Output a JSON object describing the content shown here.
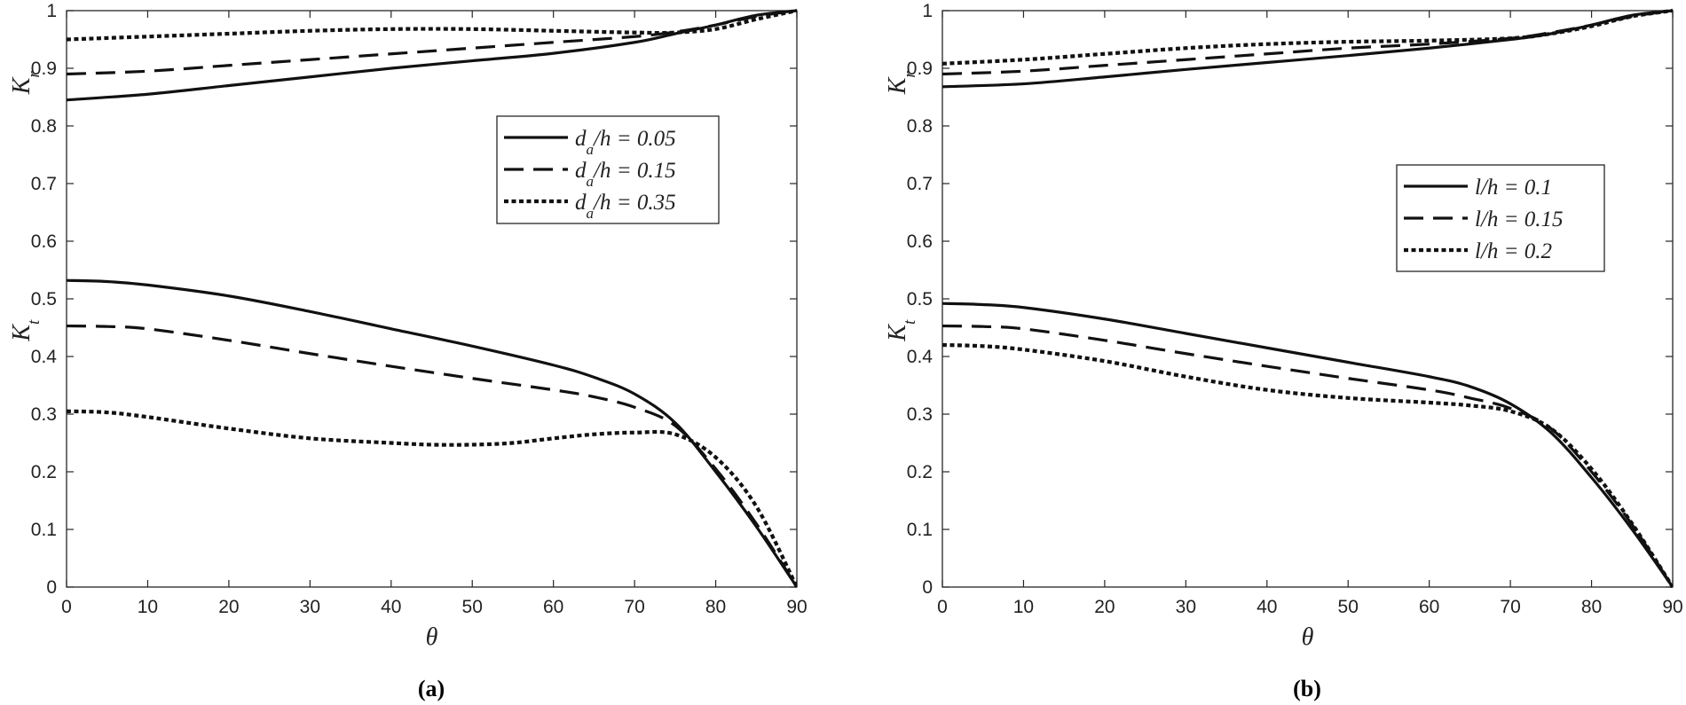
{
  "chart_data": [
    {
      "type": "line",
      "panel_label": "(a)",
      "xlabel": "θ",
      "ylabel_upper": {
        "main": "K",
        "sub": "r"
      },
      "ylabel_lower": {
        "main": "K",
        "sub": "t"
      },
      "xlim": [
        0,
        90
      ],
      "ylim": [
        0,
        1
      ],
      "xticks": [
        "0",
        "10",
        "20",
        "30",
        "40",
        "50",
        "60",
        "70",
        "80",
        "90"
      ],
      "yticks": [
        "0",
        "0.1",
        "0.2",
        "0.3",
        "0.4",
        "0.5",
        "0.6",
        "0.7",
        "0.8",
        "0.9",
        "1"
      ],
      "grid": false,
      "legend_position": "right, upper middle",
      "legend": [
        {
          "var": "d",
          "sub": "a",
          "rest": "/h = 0.05",
          "style": "solid"
        },
        {
          "var": "d",
          "sub": "a",
          "rest": "/h = 0.15",
          "style": "dashed"
        },
        {
          "var": "d",
          "sub": "a",
          "rest": "/h = 0.35",
          "style": "dotted"
        }
      ],
      "series": [
        {
          "name": "Kr d_a/h=0.05",
          "style": "solid",
          "x": [
            0,
            10,
            20,
            30,
            40,
            50,
            60,
            70,
            75,
            80,
            85,
            90
          ],
          "y": [
            0.845,
            0.855,
            0.87,
            0.885,
            0.9,
            0.913,
            0.926,
            0.945,
            0.96,
            0.975,
            0.992,
            1.0
          ]
        },
        {
          "name": "Kr d_a/h=0.15",
          "style": "dashed",
          "x": [
            0,
            10,
            20,
            30,
            40,
            50,
            60,
            70,
            75,
            80,
            85,
            90
          ],
          "y": [
            0.89,
            0.895,
            0.905,
            0.915,
            0.925,
            0.935,
            0.945,
            0.955,
            0.963,
            0.975,
            0.99,
            1.0
          ]
        },
        {
          "name": "Kr d_a/h=0.35",
          "style": "dotted",
          "x": [
            0,
            10,
            20,
            30,
            40,
            50,
            60,
            70,
            75,
            80,
            85,
            90
          ],
          "y": [
            0.95,
            0.955,
            0.96,
            0.965,
            0.968,
            0.968,
            0.965,
            0.962,
            0.962,
            0.968,
            0.985,
            1.0
          ]
        },
        {
          "name": "Kt d_a/h=0.05",
          "style": "solid",
          "x": [
            0,
            5,
            10,
            20,
            30,
            40,
            50,
            60,
            65,
            70,
            75,
            80,
            85,
            90
          ],
          "y": [
            0.532,
            0.53,
            0.524,
            0.505,
            0.478,
            0.448,
            0.418,
            0.385,
            0.364,
            0.335,
            0.285,
            0.2,
            0.105,
            0.0
          ]
        },
        {
          "name": "Kt d_a/h=0.15",
          "style": "dashed",
          "x": [
            0,
            5,
            10,
            20,
            30,
            40,
            50,
            60,
            65,
            70,
            75,
            80,
            85,
            90
          ],
          "y": [
            0.453,
            0.452,
            0.448,
            0.428,
            0.405,
            0.383,
            0.362,
            0.342,
            0.33,
            0.312,
            0.28,
            0.205,
            0.11,
            0.0
          ]
        },
        {
          "name": "Kt d_a/h=0.35",
          "style": "dotted",
          "x": [
            0,
            5,
            10,
            20,
            30,
            40,
            45,
            50,
            55,
            60,
            65,
            70,
            75,
            80,
            85,
            90
          ],
          "y": [
            0.305,
            0.303,
            0.295,
            0.275,
            0.258,
            0.25,
            0.247,
            0.247,
            0.25,
            0.258,
            0.265,
            0.268,
            0.265,
            0.225,
            0.14,
            0.0
          ]
        }
      ]
    },
    {
      "type": "line",
      "panel_label": "(b)",
      "xlabel": "θ",
      "ylabel_upper": {
        "main": "K",
        "sub": "r"
      },
      "ylabel_lower": {
        "main": "K",
        "sub": "t"
      },
      "xlim": [
        0,
        90
      ],
      "ylim": [
        0,
        1
      ],
      "xticks": [
        "0",
        "10",
        "20",
        "30",
        "40",
        "50",
        "60",
        "70",
        "80",
        "90"
      ],
      "yticks": [
        "0",
        "0.1",
        "0.2",
        "0.3",
        "0.4",
        "0.5",
        "0.6",
        "0.7",
        "0.8",
        "0.9",
        "1"
      ],
      "grid": false,
      "legend_position": "right, middle",
      "legend": [
        {
          "var": "l",
          "sub": "",
          "rest": "/h = 0.1",
          "style": "solid"
        },
        {
          "var": "l",
          "sub": "",
          "rest": "/h = 0.15",
          "style": "dashed"
        },
        {
          "var": "l",
          "sub": "",
          "rest": "/h = 0.2",
          "style": "dotted"
        }
      ],
      "series": [
        {
          "name": "Kr l/h=0.1",
          "style": "solid",
          "x": [
            0,
            10,
            20,
            30,
            40,
            50,
            60,
            70,
            75,
            80,
            85,
            90
          ],
          "y": [
            0.868,
            0.873,
            0.885,
            0.898,
            0.91,
            0.922,
            0.935,
            0.95,
            0.96,
            0.975,
            0.992,
            1.0
          ]
        },
        {
          "name": "Kr l/h=0.15",
          "style": "dashed",
          "x": [
            0,
            10,
            20,
            30,
            40,
            50,
            60,
            70,
            75,
            80,
            85,
            90
          ],
          "y": [
            0.89,
            0.895,
            0.905,
            0.915,
            0.925,
            0.935,
            0.942,
            0.952,
            0.962,
            0.975,
            0.99,
            1.0
          ]
        },
        {
          "name": "Kr l/h=0.2",
          "style": "dotted",
          "x": [
            0,
            10,
            20,
            30,
            40,
            50,
            60,
            70,
            75,
            80,
            85,
            90
          ],
          "y": [
            0.908,
            0.915,
            0.925,
            0.935,
            0.942,
            0.946,
            0.948,
            0.952,
            0.96,
            0.973,
            0.99,
            1.0
          ]
        },
        {
          "name": "Kt l/h=0.1",
          "style": "solid",
          "x": [
            0,
            5,
            10,
            20,
            30,
            40,
            50,
            60,
            65,
            70,
            75,
            80,
            85,
            90
          ],
          "y": [
            0.492,
            0.49,
            0.485,
            0.465,
            0.44,
            0.415,
            0.39,
            0.365,
            0.348,
            0.318,
            0.268,
            0.19,
            0.1,
            0.0
          ]
        },
        {
          "name": "Kt l/h=0.15",
          "style": "dashed",
          "x": [
            0,
            5,
            10,
            20,
            30,
            40,
            50,
            60,
            65,
            70,
            75,
            80,
            85,
            90
          ],
          "y": [
            0.453,
            0.452,
            0.448,
            0.428,
            0.405,
            0.383,
            0.362,
            0.342,
            0.328,
            0.31,
            0.275,
            0.2,
            0.108,
            0.0
          ]
        },
        {
          "name": "Kt l/h=0.2",
          "style": "dotted",
          "x": [
            0,
            5,
            10,
            20,
            30,
            40,
            50,
            60,
            65,
            70,
            75,
            80,
            85,
            90
          ],
          "y": [
            0.42,
            0.418,
            0.412,
            0.392,
            0.365,
            0.342,
            0.328,
            0.32,
            0.315,
            0.305,
            0.275,
            0.205,
            0.11,
            0.0
          ]
        }
      ]
    }
  ]
}
